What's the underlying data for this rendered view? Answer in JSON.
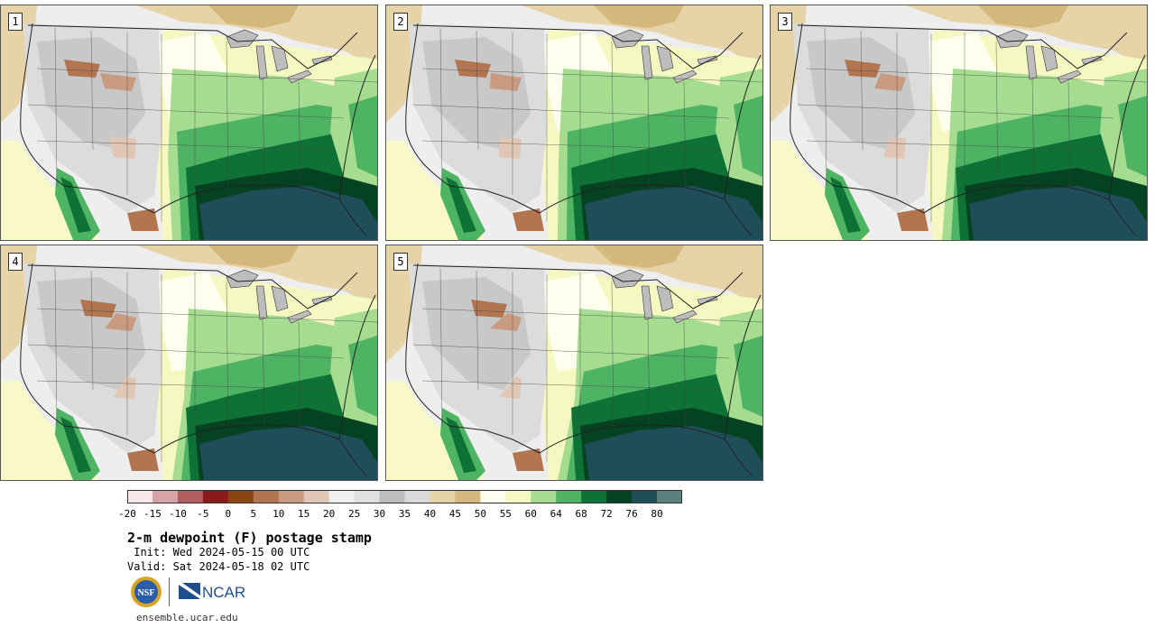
{
  "stamps": [
    {
      "label": "1",
      "variant": 0
    },
    {
      "label": "2",
      "variant": 1
    },
    {
      "label": "3",
      "variant": 2
    },
    {
      "label": "4",
      "variant": 3
    },
    {
      "label": "5",
      "variant": 4
    }
  ],
  "colorbar": {
    "ticks": [
      "-20",
      "-15",
      "-10",
      "-5",
      "0",
      "5",
      "10",
      "15",
      "20",
      "25",
      "30",
      "35",
      "40",
      "45",
      "50",
      "55",
      "60",
      "64",
      "68",
      "72",
      "76",
      "80"
    ],
    "colors": [
      "#f6e8e8",
      "#d6a3a6",
      "#b25e60",
      "#8b1a1a",
      "#8b4513",
      "#b27550",
      "#c89b80",
      "#e1c6b5",
      "#f0f0f0",
      "#e0e0e0",
      "#bdbdbd",
      "#d9d9d9",
      "#e6d3a8",
      "#d4b77a",
      "#ffffee",
      "#f5f8c0",
      "#a6dc8f",
      "#4eb363",
      "#0e7236",
      "#044221",
      "#1f4e5a",
      "#5c8080"
    ]
  },
  "title": "2-m dewpoint (F) postage stamp",
  "init": " Init: Wed 2024-05-15 00 UTC",
  "valid": "Valid: Sat 2024-05-18 02 UTC",
  "logos": {
    "nsf": "NSF",
    "ncar": "NCAR"
  },
  "site": "ensemble.ucar.edu"
}
